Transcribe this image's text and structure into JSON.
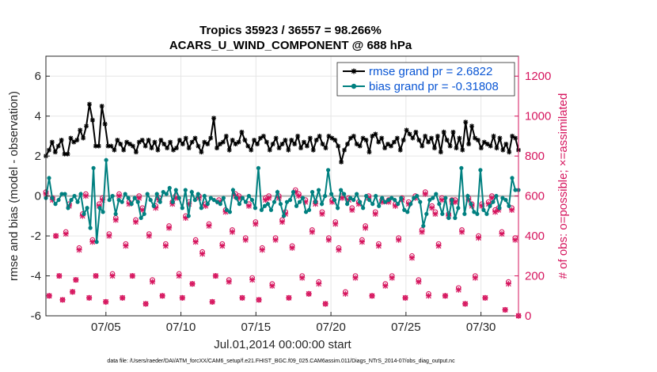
{
  "chart_data": {
    "type": "line",
    "title": "Tropics 35923 / 36557 = 98.266%",
    "subtitle": "ACARS_U_WIND_COMPONENT @ 688 hPa",
    "xlabel": "Jul.01,2014 00:00:00 start",
    "ylabel": "rmse and bias (model - observation)",
    "ylabel_right": "# of obs: o=possible; ×=assimilated",
    "footnote": "data file: /Users/raeder/DAI/ATM_forcXX/CAM6_setup/f.e21.FHIST_BGC.f09_025.CAM6assim.011/Diags_NTrS_2014-07/obs_diag_output.nc",
    "xlim": [
      1,
      32.5
    ],
    "ylim": [
      -6,
      7
    ],
    "ylim_right": [
      0,
      1300
    ],
    "x_ticks": [
      5,
      10,
      15,
      20,
      25,
      30
    ],
    "x_tick_labels": [
      "07/05",
      "07/10",
      "07/15",
      "07/20",
      "07/25",
      "07/30"
    ],
    "y_ticks": [
      -6,
      -4,
      -2,
      0,
      2,
      4,
      6
    ],
    "y_tick_labels": [
      "-6",
      "-4",
      "-2",
      "0",
      "2",
      "4",
      "6"
    ],
    "y_ticks_right": [
      0,
      200,
      400,
      600,
      800,
      1000,
      1200
    ],
    "y_tick_labels_right": [
      "0",
      "200",
      "400",
      "600",
      "800",
      "1000",
      "1200"
    ],
    "grid": true,
    "legend_position": "top-right",
    "colors": {
      "rmse": "#000000",
      "bias": "#008080",
      "obs": "#d6155e",
      "legend_text": "#0a56d4",
      "right_axis": "#d6155e",
      "zero_line": "#b0b0b0"
    },
    "series": [
      {
        "name": "rmse grand pr = 2.6822",
        "axis": "left",
        "values": [
          2.0,
          2.3,
          2.7,
          2.2,
          2.5,
          2.8,
          2.1,
          2.1,
          2.9,
          2.7,
          2.8,
          3.3,
          2.9,
          3.5,
          4.6,
          3.8,
          2.5,
          2.5,
          4.5,
          3.6,
          2.5,
          2.5,
          2.3,
          2.8,
          2.6,
          2.3,
          2.7,
          2.6,
          2.5,
          2.2,
          2.7,
          2.8,
          2.5,
          2.8,
          2.4,
          2.7,
          2.3,
          2.8,
          2.6,
          2.4,
          2.7,
          2.3,
          2.4,
          2.8,
          2.6,
          2.9,
          2.4,
          2.7,
          2.9,
          2.5,
          2.2,
          2.7,
          2.6,
          2.9,
          3.9,
          2.4,
          2.6,
          2.7,
          3.0,
          2.3,
          2.8,
          2.6,
          2.7,
          3.2,
          2.8,
          2.5,
          2.3,
          2.8,
          2.6,
          2.9,
          3.0,
          2.7,
          2.3,
          2.6,
          2.9,
          2.4,
          2.6,
          2.8,
          2.3,
          2.8,
          2.6,
          3.0,
          2.4,
          2.7,
          2.5,
          2.9,
          2.3,
          2.8,
          3.0,
          2.6,
          2.4,
          3.0,
          2.9,
          2.8,
          2.5,
          1.7,
          2.3,
          2.6,
          2.9,
          3.0,
          2.6,
          2.5,
          2.9,
          2.8,
          2.2,
          3.0,
          3.1,
          2.7,
          2.9,
          2.4,
          2.6,
          2.5,
          2.7,
          2.9,
          2.3,
          2.8,
          3.3,
          3.1,
          2.9,
          3.2,
          2.8,
          2.5,
          3.0,
          2.7,
          2.9,
          2.4,
          3.0,
          2.2,
          3.2,
          2.8,
          2.5,
          3.2,
          2.4,
          2.9,
          2.3,
          3.7,
          2.6,
          3.5,
          2.9,
          2.8,
          2.4,
          2.7,
          2.6,
          2.5,
          3.0,
          2.4,
          2.9,
          2.3,
          2.6,
          2.2,
          3.0,
          2.9,
          2.3
        ]
      },
      {
        "name": "bias grand pr = -0.31808",
        "axis": "left",
        "values": [
          -0.1,
          0.9,
          -0.1,
          -0.4,
          -0.2,
          0.1,
          0.1,
          -0.6,
          -0.2,
          0.0,
          -0.3,
          0.1,
          -0.9,
          -0.6,
          -1.6,
          1.4,
          -2.3,
          -0.6,
          -0.8,
          1.8,
          -0.2,
          0.0,
          -0.9,
          -0.2,
          -0.3,
          0.1,
          -0.1,
          -0.4,
          -0.1,
          -0.3,
          -1.1,
          -0.9,
          0.1,
          -0.2,
          -0.5,
          0.1,
          -0.3,
          0.2,
          0.1,
          0.4,
          -0.3,
          0.3,
          -0.1,
          -0.6,
          0.3,
          -1.0,
          0.2,
          -0.2,
          0.1,
          -0.6,
          0.0,
          -0.4,
          -0.1,
          -0.2,
          -0.3,
          -0.4,
          -0.1,
          -0.7,
          -0.8,
          0.3,
          -0.1,
          -0.4,
          -0.1,
          -0.3,
          0.0,
          -0.2,
          -0.6,
          1.4,
          -0.7,
          -0.5,
          -0.4,
          -0.7,
          -0.3,
          0.2,
          -0.4,
          -1.0,
          -0.3,
          -0.2,
          0.2,
          -0.5,
          -0.3,
          -0.1,
          -0.8,
          -0.7,
          0.2,
          -0.3,
          0.3,
          -0.4,
          0.0,
          1.3,
          0.1,
          -0.2,
          -0.6,
          0.3,
          0.1,
          -0.4,
          -0.1,
          -0.2,
          0.1,
          -0.3,
          -0.6,
          0.0,
          -0.2,
          -0.4,
          0.0,
          -0.5,
          -0.1,
          -0.3,
          -0.2,
          -0.1,
          -0.2,
          -0.4,
          -0.1,
          -0.7,
          -0.8,
          -0.4,
          -0.1,
          0.0,
          -0.3,
          -1.5,
          -0.9,
          -0.2,
          -0.1,
          0.1,
          -0.4,
          -0.9,
          -0.1,
          -1.1,
          -0.2,
          -1.1,
          -0.6,
          1.4,
          -0.9,
          0.0,
          -0.4,
          -0.8,
          -0.9,
          1.3,
          -0.7,
          -0.9,
          -0.5,
          -0.3,
          0.0,
          -0.6,
          -0.1,
          -0.2,
          -0.5,
          0.9,
          0.3,
          0.3
        ]
      },
      {
        "name": "obs possible",
        "axis": "right",
        "marker": "o",
        "values": [
          620,
          100,
          590,
          400,
          200,
          80,
          420,
          560,
          120,
          180,
          340,
          510,
          610,
          90,
          380,
          200,
          560,
          590,
          70,
          410,
          210,
          490,
          610,
          90,
          360,
          570,
          200,
          480,
          600,
          540,
          60,
          410,
          180,
          550,
          590,
          100,
          360,
          450,
          570,
          600,
          210,
          90,
          500,
          570,
          160,
          380,
          600,
          320,
          560,
          460,
          70,
          200,
          580,
          360,
          530,
          180,
          430,
          610,
          600,
          90,
          390,
          560,
          190,
          470,
          80,
          340,
          590,
          600,
          160,
          390,
          600,
          480,
          520,
          90,
          350,
          630,
          610,
          200,
          580,
          110,
          430,
          570,
          170,
          520,
          60,
          390,
          580,
          470,
          340,
          600,
          120,
          590,
          540,
          200,
          570,
          380,
          450,
          600,
          100,
          520,
          360,
          580,
          160,
          580,
          200,
          560,
          390,
          590,
          90,
          570,
          300,
          600,
          180,
          430,
          620,
          110,
          550,
          520,
          360,
          590,
          100,
          510,
          580,
          580,
          140,
          430,
          60,
          590,
          560,
          200,
          400,
          560,
          90,
          570,
          600,
          530,
          540,
          420,
          30,
          170,
          540,
          390,
          0
        ]
      },
      {
        "name": "obs assimilated",
        "axis": "right",
        "marker": "x",
        "values": [
          610,
          100,
          580,
          400,
          200,
          80,
          410,
          550,
          120,
          180,
          330,
          500,
          600,
          90,
          370,
          200,
          550,
          580,
          70,
          400,
          200,
          480,
          600,
          90,
          350,
          560,
          200,
          470,
          590,
          530,
          60,
          400,
          170,
          540,
          580,
          100,
          350,
          440,
          560,
          590,
          200,
          90,
          490,
          560,
          160,
          370,
          590,
          310,
          550,
          450,
          70,
          200,
          570,
          350,
          520,
          170,
          420,
          600,
          590,
          90,
          380,
          550,
          180,
          460,
          80,
          330,
          580,
          590,
          150,
          380,
          590,
          470,
          510,
          90,
          340,
          620,
          600,
          190,
          570,
          110,
          420,
          560,
          160,
          510,
          60,
          380,
          570,
          460,
          330,
          590,
          110,
          580,
          530,
          190,
          560,
          370,
          440,
          590,
          100,
          510,
          350,
          570,
          150,
          570,
          190,
          550,
          380,
          580,
          90,
          560,
          290,
          590,
          170,
          420,
          610,
          100,
          540,
          510,
          350,
          580,
          100,
          500,
          570,
          570,
          130,
          420,
          60,
          580,
          550,
          190,
          390,
          550,
          90,
          560,
          590,
          520,
          530,
          410,
          30,
          160,
          530,
          380,
          0
        ]
      }
    ]
  }
}
